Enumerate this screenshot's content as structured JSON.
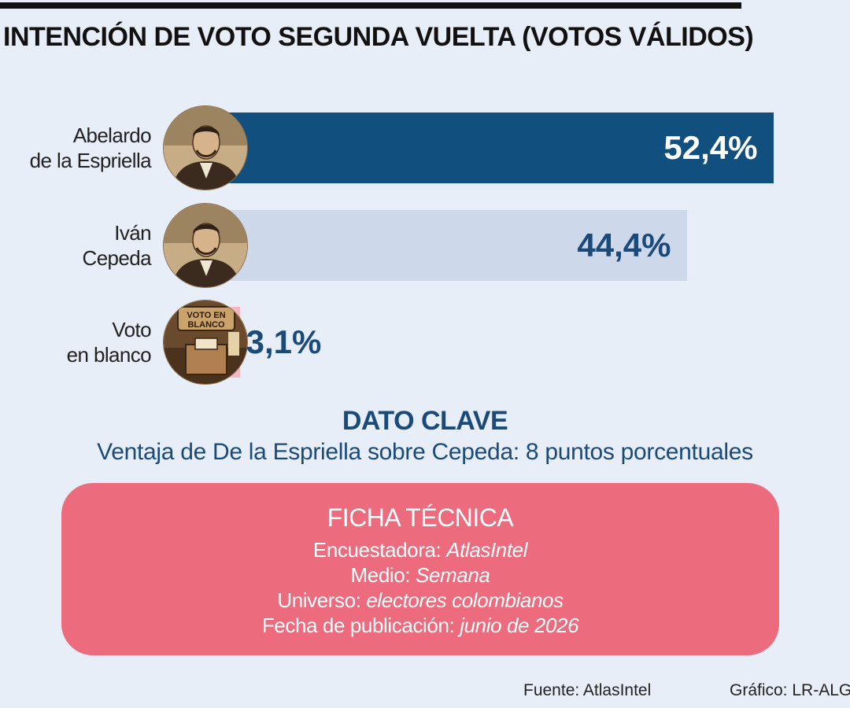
{
  "title": "INTENCIÓN DE VOTO SEGUNDA VUELTA (VOTOS VÁLIDOS)",
  "chart_data": {
    "type": "bar",
    "orientation": "horizontal",
    "categories": [
      "Abelardo de la Espriella",
      "Iván Cepeda",
      "Voto en blanco"
    ],
    "category_lines": [
      [
        "Abelardo",
        "de la Espriella"
      ],
      [
        "Iván",
        "Cepeda"
      ],
      [
        "Voto",
        "en blanco"
      ]
    ],
    "values": [
      52.4,
      44.4,
      3.1
    ],
    "value_labels": [
      "52,4%",
      "44,4%",
      "3,1%"
    ],
    "unit": "%",
    "bar_colors": [
      "#11507e",
      "#cdd8ea",
      "#f3b7c1"
    ],
    "value_label_colors": [
      "#ffffff",
      "#1a4a7a",
      "#1a4a7a"
    ],
    "avatar_icons": [
      "candidate-portrait",
      "candidate-portrait",
      "ballot-box"
    ],
    "avatar_caption": "VOTO EN BLANCO"
  },
  "dato_clave": {
    "title": "DATO CLAVE",
    "text": "Ventaja de De la Espriella sobre Cepeda: 8 puntos porcentuales"
  },
  "ficha": {
    "title": "FICHA TÉCNICA",
    "rows": [
      {
        "label": "Encuestadora:",
        "value": "AtlasIntel"
      },
      {
        "label": "Medio:",
        "value": "Semana"
      },
      {
        "label": "Universo:",
        "value": "electores colombianos"
      },
      {
        "label": "Fecha de publicación:",
        "value": "junio de 2026"
      }
    ]
  },
  "footer": {
    "source": "Fuente: AtlasIntel",
    "credit": "Gráfico: LR-ALG"
  },
  "colors": {
    "background": "#e8eef7",
    "accent_blue": "#11507e",
    "ficha_pink": "#ec6b7c"
  }
}
